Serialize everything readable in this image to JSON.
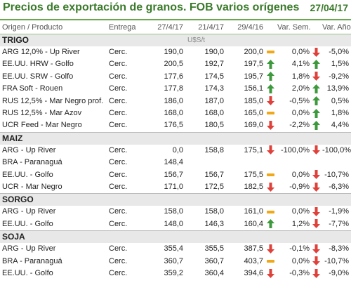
{
  "header": {
    "title": "Precios de exportación de granos. FOB varios orígenes",
    "date": "27/04/17"
  },
  "columns": {
    "origin": "Origen / Producto",
    "delivery": "Entrega",
    "d1": "27/4/17",
    "d2": "21/4/17",
    "d3": "29/4/16",
    "varweek": "Var. Sem.",
    "varyear": "Var. Año"
  },
  "unit": "U$S/t",
  "sections": [
    {
      "name": "TRIGO",
      "rows": [
        {
          "origin": "ARG 12,0% - Up River",
          "delivery": "Cerc.",
          "d1": "190,0",
          "d2": "190,0",
          "d3": "200,0",
          "yicon": "flat",
          "varweek": "0,0%",
          "wicon": "down",
          "varyear": "-5,0%"
        },
        {
          "origin": "EE.UU. HRW - Golfo",
          "delivery": "Cerc.",
          "d1": "200,5",
          "d2": "192,7",
          "d3": "197,5",
          "yicon": "up",
          "varweek": "4,1%",
          "wicon": "up",
          "varyear": "1,5%"
        },
        {
          "origin": "EE.UU. SRW - Golfo",
          "delivery": "Cerc.",
          "d1": "177,6",
          "d2": "174,5",
          "d3": "195,7",
          "yicon": "up",
          "varweek": "1,8%",
          "wicon": "down",
          "varyear": "-9,2%"
        },
        {
          "origin": "FRA Soft - Rouen",
          "delivery": "Cerc.",
          "d1": "177,8",
          "d2": "174,3",
          "d3": "156,1",
          "yicon": "up",
          "varweek": "2,0%",
          "wicon": "up",
          "varyear": "13,9%"
        },
        {
          "origin": "RUS 12,5% - Mar Negro prof.",
          "delivery": "Cerc.",
          "d1": "186,0",
          "d2": "187,0",
          "d3": "185,0",
          "yicon": "down",
          "varweek": "-0,5%",
          "wicon": "up",
          "varyear": "0,5%"
        },
        {
          "origin": "RUS 12,5% - Mar Azov",
          "delivery": "Cerc.",
          "d1": "168,0",
          "d2": "168,0",
          "d3": "165,0",
          "yicon": "flat",
          "varweek": "0,0%",
          "wicon": "up",
          "varyear": "1,8%"
        },
        {
          "origin": "UCR Feed - Mar Negro",
          "delivery": "Cerc.",
          "d1": "176,5",
          "d2": "180,5",
          "d3": "169,0",
          "yicon": "down",
          "varweek": "-2,2%",
          "wicon": "up",
          "varyear": "4,4%"
        }
      ]
    },
    {
      "name": "MAIZ",
      "rows": [
        {
          "origin": "ARG - Up River",
          "delivery": "Cerc.",
          "d1": "0,0",
          "d2": "158,8",
          "d3": "175,1",
          "yicon": "down",
          "varweek": "-100,0%",
          "wicon": "down",
          "varyear": "-100,0%"
        },
        {
          "origin": "BRA - Paranaguá",
          "delivery": "Cerc.",
          "d1": "148,4",
          "d2": "",
          "d3": "",
          "yicon": "",
          "varweek": "",
          "wicon": "",
          "varyear": ""
        },
        {
          "origin": "EE.UU. - Golfo",
          "delivery": "Cerc.",
          "d1": "156,7",
          "d2": "156,7",
          "d3": "175,5",
          "yicon": "flat",
          "varweek": "0,0%",
          "wicon": "down",
          "varyear": "-10,7%"
        },
        {
          "origin": "UCR - Mar Negro",
          "delivery": "Cerc.",
          "d1": "171,0",
          "d2": "172,5",
          "d3": "182,5",
          "yicon": "down",
          "varweek": "-0,9%",
          "wicon": "down",
          "varyear": "-6,3%"
        }
      ]
    },
    {
      "name": "SORGO",
      "rows": [
        {
          "origin": "ARG - Up River",
          "delivery": "Cerc.",
          "d1": "158,0",
          "d2": "158,0",
          "d3": "161,0",
          "yicon": "flat",
          "varweek": "0,0%",
          "wicon": "down",
          "varyear": "-1,9%"
        },
        {
          "origin": "EE.UU. - Golfo",
          "delivery": "Cerc.",
          "d1": "148,0",
          "d2": "146,3",
          "d3": "160,4",
          "yicon": "up",
          "varweek": "1,2%",
          "wicon": "down",
          "varyear": "-7,7%"
        }
      ]
    },
    {
      "name": "SOJA",
      "rows": [
        {
          "origin": "ARG - Up River",
          "delivery": "Cerc.",
          "d1": "355,4",
          "d2": "355,5",
          "d3": "387,5",
          "yicon": "down",
          "varweek": "-0,1%",
          "wicon": "down",
          "varyear": "-8,3%"
        },
        {
          "origin": "BRA - Paranaguá",
          "delivery": "Cerc.",
          "d1": "360,7",
          "d2": "360,7",
          "d3": "403,7",
          "yicon": "flat",
          "varweek": "0,0%",
          "wicon": "down",
          "varyear": "-10,7%"
        },
        {
          "origin": "EE.UU. - Golfo",
          "delivery": "Cerc.",
          "d1": "359,2",
          "d2": "360,4",
          "d3": "394,6",
          "yicon": "down",
          "varweek": "-0,3%",
          "wicon": "down",
          "varyear": "-9,0%"
        }
      ]
    }
  ],
  "colors": {
    "accent": "#3a7a2a",
    "up": "#3c9a3c",
    "down": "#e0403a",
    "flat": "#f0a818"
  }
}
